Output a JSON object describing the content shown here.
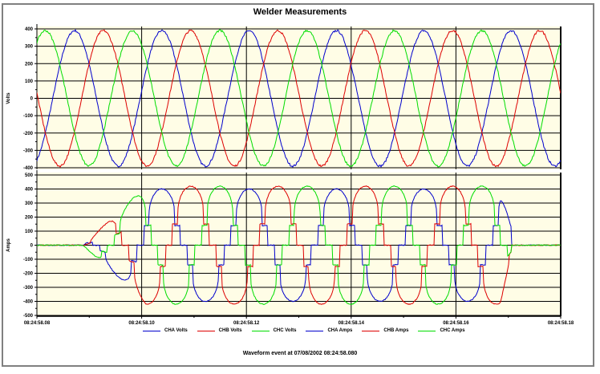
{
  "window": {
    "title": "Welder Measurements",
    "footer": "Waveform event at 07/08/2002 08:24:58.080"
  },
  "colors": {
    "plot_bg": "#fffde6",
    "grid": "#000000",
    "cha": "#0000cc",
    "chb": "#dd0000",
    "chc": "#00dd00"
  },
  "legend": [
    {
      "label": "CHA Volts",
      "color": "#0000cc"
    },
    {
      "label": "CHB Volts",
      "color": "#dd0000"
    },
    {
      "label": "CHC Volts",
      "color": "#00dd00"
    },
    {
      "label": "CHA Amps",
      "color": "#0000cc"
    },
    {
      "label": "CHB Amps",
      "color": "#dd0000"
    },
    {
      "label": "CHC Amps",
      "color": "#00dd00"
    }
  ],
  "chart_data": [
    {
      "type": "line",
      "title": "Welder Measurements",
      "panel": "upper",
      "xlabel": "",
      "ylabel": "Volts",
      "ylim": [
        -400,
        400
      ],
      "yticks": [
        400,
        300,
        200,
        100,
        0,
        -100,
        -200,
        -300,
        -400
      ],
      "x_tick_labels": [
        "08:24:58.08",
        "08:24:58.10",
        "08:24:58.12",
        "08:24:58.14",
        "08:24:58.16",
        "08:24:58.18"
      ],
      "xlim_seconds": [
        0.08,
        0.18
      ],
      "grid": true,
      "frequency_hz": 60,
      "series": [
        {
          "name": "CHA Volts",
          "color": "#0000cc",
          "amplitude": 390,
          "peak_time": 0.0872
        },
        {
          "name": "CHB Volts",
          "color": "#dd0000",
          "amplitude": 390,
          "peak_time": 0.0927
        },
        {
          "name": "CHC Volts",
          "color": "#00dd00",
          "amplitude": 390,
          "peak_time": 0.0816
        }
      ]
    },
    {
      "type": "line",
      "panel": "lower",
      "xlabel": "",
      "ylabel": "Amps",
      "ylim": [
        -500,
        500
      ],
      "yticks": [
        500,
        400,
        300,
        200,
        100,
        0,
        -100,
        -200,
        -300,
        -400,
        -500
      ],
      "x_tick_labels": [
        "08:24:58.08",
        "08:24:58.10",
        "08:24:58.12",
        "08:24:58.14",
        "08:24:58.16",
        "08:24:58.18"
      ],
      "xlim_seconds": [
        0.08,
        0.18
      ],
      "grid": true,
      "weld_start": 0.0888,
      "weld_end": 0.1706,
      "series": [
        {
          "name": "CHA Amps",
          "color": "#0000cc",
          "peak_amplitude": 400,
          "shoulder": 120
        },
        {
          "name": "CHB Amps",
          "color": "#dd0000",
          "peak_amplitude": 420,
          "shoulder": 130
        },
        {
          "name": "CHC Amps",
          "color": "#00dd00",
          "peak_amplitude": 420,
          "shoulder": 120
        }
      ],
      "annotations": [
        "CHA/CHB/CHC current waveforms ramp from ~0 A at 08:24:58.088 to ~±400 A peaks, ending at ~08:24:58.171"
      ]
    }
  ],
  "footer": {
    "text": "Waveform event at 07/08/2002 08:24:58.080"
  }
}
